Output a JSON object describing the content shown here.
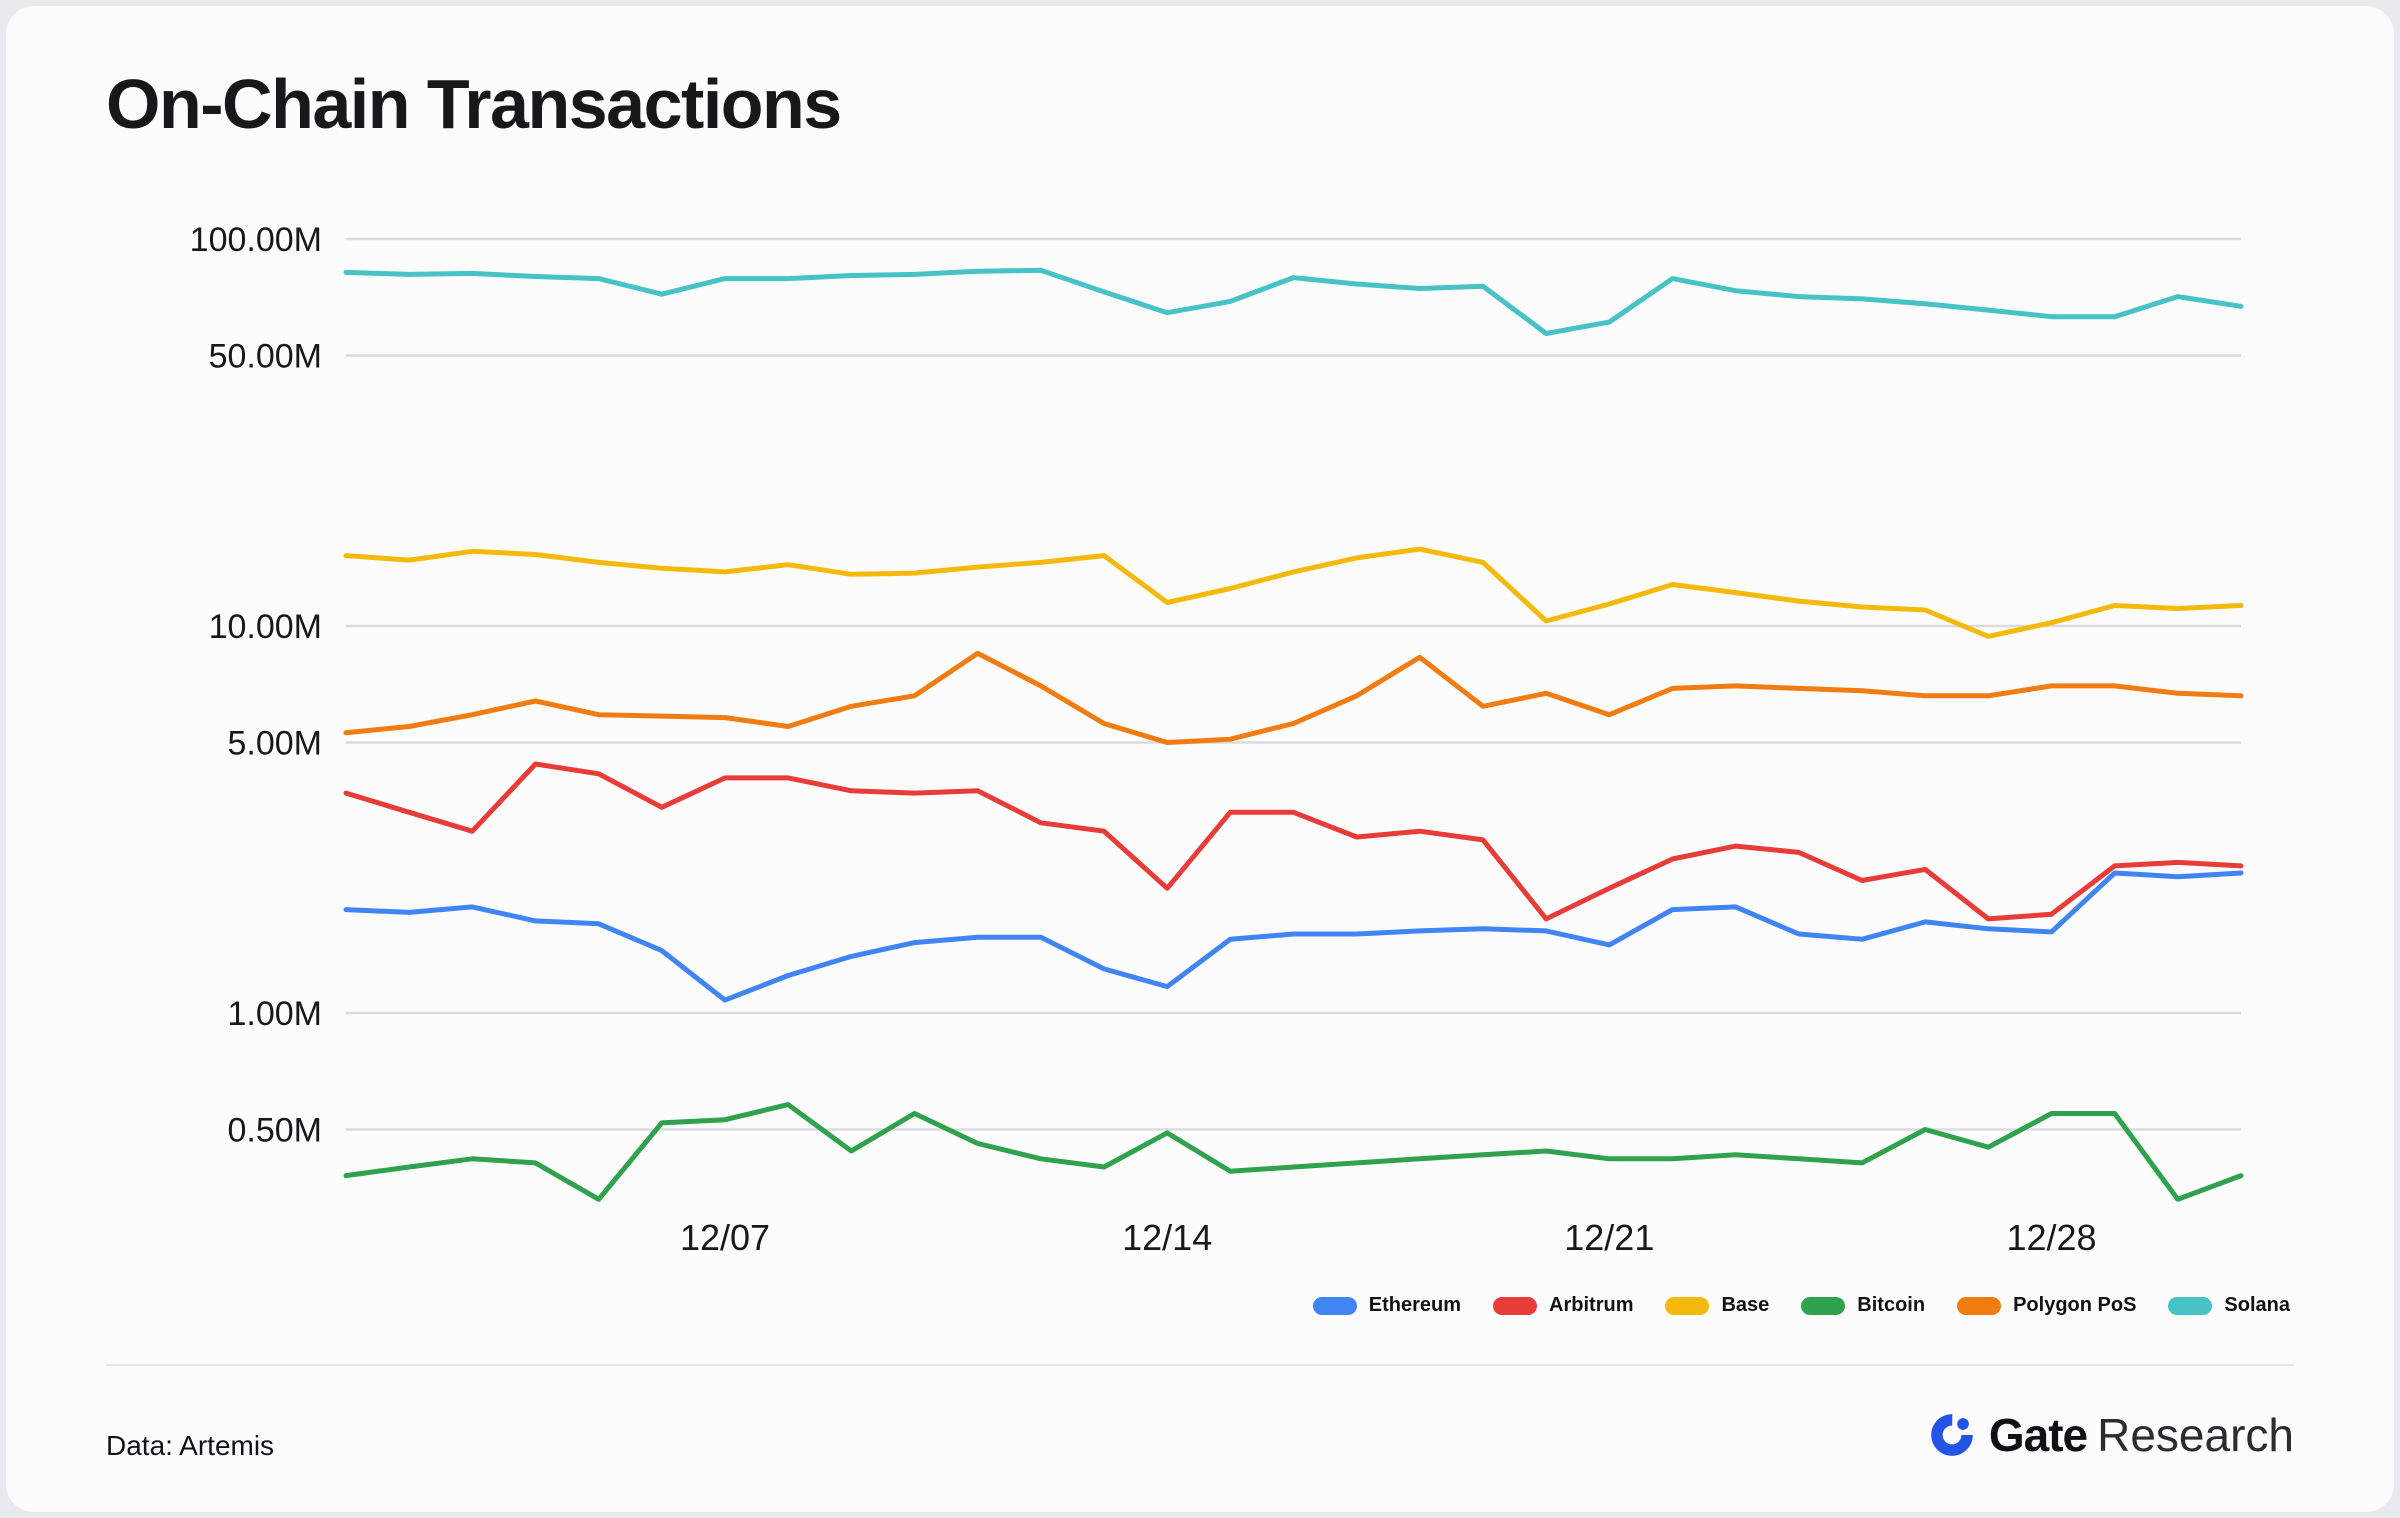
{
  "chart_data": {
    "type": "line",
    "title": "On-Chain Transactions",
    "xlabel": "",
    "ylabel": "",
    "y_scale": "log",
    "values_unit": "millions of transactions",
    "grid": true,
    "legend_position": "bottom-right",
    "ylim_millions": [
      0.3,
      120
    ],
    "x": [
      "12/01",
      "12/02",
      "12/03",
      "12/04",
      "12/05",
      "12/06",
      "12/07",
      "12/08",
      "12/09",
      "12/10",
      "12/11",
      "12/12",
      "12/13",
      "12/14",
      "12/15",
      "12/16",
      "12/17",
      "12/18",
      "12/19",
      "12/20",
      "12/21",
      "12/22",
      "12/23",
      "12/24",
      "12/25",
      "12/26",
      "12/27",
      "12/28",
      "12/29",
      "12/30",
      "12/31"
    ],
    "x_ticks": [
      "12/07",
      "12/14",
      "12/21",
      "12/28"
    ],
    "y_ticks": [
      {
        "label": "100.00M",
        "value": 100
      },
      {
        "label": "50.00M",
        "value": 50
      },
      {
        "label": "10.00M",
        "value": 10
      },
      {
        "label": "5.00M",
        "value": 5
      },
      {
        "label": "1.00M",
        "value": 1
      },
      {
        "label": "0.50M",
        "value": 0.5
      }
    ],
    "series": [
      {
        "name": "Ethereum",
        "color": "#4185f4",
        "values": [
          1.85,
          1.82,
          1.88,
          1.73,
          1.7,
          1.45,
          1.08,
          1.25,
          1.4,
          1.52,
          1.57,
          1.57,
          1.3,
          1.17,
          1.55,
          1.6,
          1.6,
          1.63,
          1.65,
          1.63,
          1.5,
          1.85,
          1.88,
          1.6,
          1.55,
          1.72,
          1.65,
          1.62,
          2.3,
          2.25,
          2.3
        ]
      },
      {
        "name": "Arbitrum",
        "color": "#e73c37",
        "values": [
          3.7,
          3.3,
          2.95,
          4.4,
          4.15,
          3.4,
          4.05,
          4.05,
          3.75,
          3.7,
          3.75,
          3.1,
          2.95,
          2.1,
          3.3,
          3.3,
          2.85,
          2.95,
          2.8,
          1.75,
          2.1,
          2.5,
          2.7,
          2.6,
          2.2,
          2.35,
          1.75,
          1.8,
          2.4,
          2.45,
          2.4
        ]
      },
      {
        "name": "Base",
        "color": "#f3ba0c",
        "values": [
          15.2,
          14.8,
          15.6,
          15.3,
          14.6,
          14.1,
          13.8,
          14.4,
          13.6,
          13.7,
          14.2,
          14.6,
          15.2,
          11.5,
          12.5,
          13.8,
          15.0,
          15.8,
          14.6,
          10.3,
          11.4,
          12.8,
          12.2,
          11.6,
          11.2,
          11.0,
          9.4,
          10.2,
          11.3,
          11.1,
          11.3
        ]
      },
      {
        "name": "Bitcoin",
        "color": "#30a14c",
        "values": [
          0.38,
          0.4,
          0.42,
          0.41,
          0.33,
          0.52,
          0.53,
          0.58,
          0.44,
          0.55,
          0.46,
          0.42,
          0.4,
          0.49,
          0.39,
          0.4,
          0.41,
          0.42,
          0.43,
          0.44,
          0.42,
          0.42,
          0.43,
          0.42,
          0.41,
          0.5,
          0.45,
          0.55,
          0.55,
          0.33,
          0.38
        ]
      },
      {
        "name": "Polygon PoS",
        "color": "#f07c12",
        "values": [
          5.3,
          5.5,
          5.9,
          6.4,
          5.9,
          5.85,
          5.8,
          5.5,
          6.2,
          6.6,
          8.5,
          7.0,
          5.6,
          5.0,
          5.1,
          5.6,
          6.6,
          8.3,
          6.2,
          6.7,
          5.9,
          6.9,
          7.0,
          6.9,
          6.8,
          6.6,
          6.6,
          7.0,
          7.0,
          6.7,
          6.6
        ]
      },
      {
        "name": "Solana",
        "color": "#47c2c6",
        "values": [
          82,
          81,
          81.5,
          80,
          79,
          72,
          79,
          79,
          80.5,
          81,
          82.5,
          83,
          73,
          64.5,
          69,
          79.5,
          76.5,
          74.5,
          75.5,
          57,
          61,
          79,
          73.5,
          71,
          70,
          68,
          65.5,
          63,
          63,
          71,
          67
        ]
      }
    ]
  },
  "footer": {
    "source": "Data: Artemis",
    "brand_name": "Gate",
    "brand_suffix": "Research",
    "brand_color": "#2354e6"
  }
}
